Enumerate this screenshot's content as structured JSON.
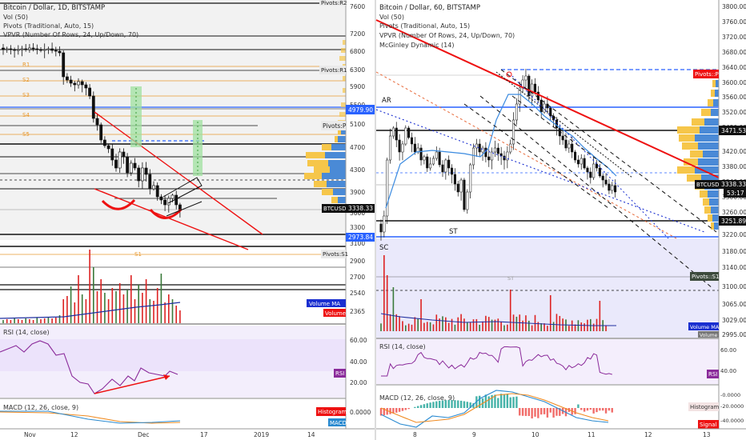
{
  "left_chart": {
    "title": "Bitcoin / Dollar, 1D, BITSTAMP",
    "indicators": [
      "Vol (50)",
      "Pivots (Traditional, Auto, 15)",
      "VPVR (Number Of Rows, 24, Up/Down, 70)"
    ],
    "pivot_labels": {
      "r2": "Pivots:R2",
      "r1": "Pivots:R1",
      "p": "Pivots:P",
      "s1": "Pivots:S1"
    },
    "level_labels": {
      "r1": "R1",
      "s2": "S2",
      "s3": "S3",
      "s4": "S4",
      "s5": "S5",
      "s1": "S1"
    },
    "price_badges": {
      "blue_level": "4979.90",
      "last_price_label": "BTCUSD",
      "last_price": "3338.33",
      "low_level": "2973.84"
    },
    "volume_badges": {
      "ma": "Volume MA",
      "vol": "Volume"
    },
    "rsi_title": "RSI (14, close)",
    "rsi_badge": "RSI",
    "macd_title": "MACD (12, 26, close, 9)",
    "macd_badges": {
      "hist": "Histogram",
      "macd": "MACD"
    },
    "x_labels": [
      "Nov",
      "12",
      "Dec",
      "17",
      "2019",
      "14"
    ]
  },
  "right_chart": {
    "title": "Bitcoin / Dollar, 60, BITSTAMP",
    "indicators": [
      "Vol (50)",
      "Pivots (Traditional, Auto, 15)",
      "VPVR (Number Of Rows, 24, Up/Down, 70)",
      "McGinley Dynamic (14)"
    ],
    "annotations": {
      "ar": "AR",
      "st": "ST",
      "sc": "SC",
      "st_mid": "ST"
    },
    "badges": {
      "pivot_p": "Pivots::P",
      "level_3471": "3471.53",
      "btcusd_label": "BTCUSD",
      "btcusd_price": "3338.33",
      "countdown": "53:17",
      "level_3251": "3251.89",
      "pivot_s1": "Pivots::S1"
    },
    "volume_badges": {
      "ma": "Volume MA",
      "vol": "Volume"
    },
    "rsi_title": "RSI (14, close)",
    "rsi_badge": "RSI",
    "macd_title": "MACD (12, 26, close, 9)",
    "macd_badges": {
      "hist": "Histogram",
      "signal": "Signal"
    },
    "x_labels": [
      "8",
      "9",
      "10",
      "11",
      "12",
      "13"
    ]
  },
  "chart_data": [
    {
      "type": "candlestick",
      "title": "Bitcoin / Dollar, 1D, BITSTAMP",
      "y_ticks": [
        7600,
        7200,
        6800,
        6300,
        5900,
        5500,
        5100,
        4700,
        4300,
        3900,
        3600,
        3300,
        3100,
        2900,
        2700,
        2540,
        2365,
        2205
      ],
      "rsi_ticks": [
        60,
        40,
        20
      ],
      "macd_ticks": [
        "0.0000"
      ],
      "x_labels": [
        "Nov",
        "12",
        "Dec",
        "17",
        "2019",
        "14"
      ],
      "last_price": 3338.33
    },
    {
      "type": "candlestick",
      "title": "Bitcoin / Dollar, 60, BITSTAMP",
      "y_ticks": [
        3800,
        3760,
        3720,
        3680,
        3640,
        3600,
        3560,
        3520,
        3480,
        3420,
        3380,
        3340,
        3300,
        3260,
        3220,
        3180,
        3140,
        3100,
        3065,
        3029,
        2995
      ],
      "rsi_ticks": [
        60,
        40
      ],
      "macd_ticks": [
        "-0.0000",
        "-20.0000",
        "-40.0000"
      ],
      "x_labels": [
        "8",
        "9",
        "10",
        "11",
        "12",
        "13"
      ],
      "last_price": 3338.33
    }
  ]
}
